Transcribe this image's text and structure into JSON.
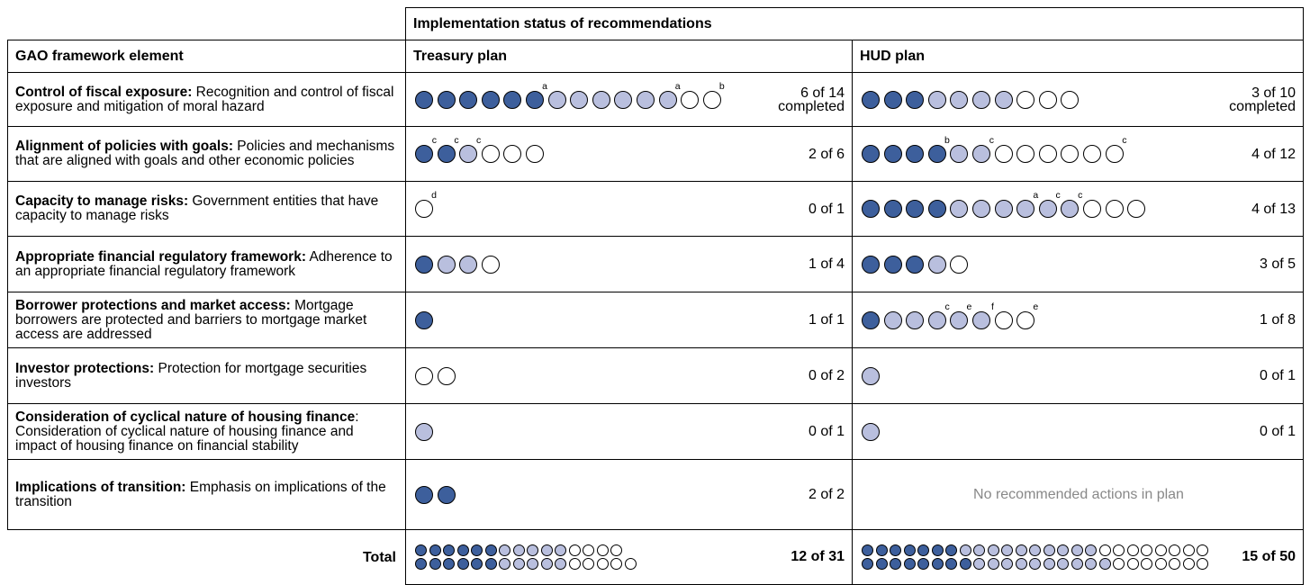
{
  "header": {
    "title": "Implementation status of recommendations"
  },
  "columns": [
    "GAO framework element",
    "Treasury plan",
    "HUD plan"
  ],
  "rows": [
    {
      "label": "Control of fiscal exposure:",
      "description": " Recognition and control of fiscal exposure and mitigation of moral hazard",
      "treasury": {
        "dots": [
          2,
          2,
          2,
          2,
          2,
          {
            "level": 2,
            "note": "a"
          },
          1,
          1,
          1,
          1,
          1,
          {
            "level": 1,
            "note": "a"
          },
          0,
          {
            "level": 0,
            "note": "b"
          }
        ],
        "count": "6 of 14",
        "count_suffix": "completed"
      },
      "hud": {
        "dots": [
          2,
          2,
          2,
          1,
          1,
          1,
          1,
          0,
          0,
          0
        ],
        "count": "3 of 10",
        "count_suffix": "completed"
      }
    },
    {
      "label": "Alignment of policies with goals:",
      "description": " Policies and mechanisms that are aligned with goals and other economic policies",
      "treasury": {
        "dots": [
          {
            "level": 2,
            "note": "c"
          },
          {
            "level": 2,
            "note": "c"
          },
          {
            "level": 1,
            "note": "c"
          },
          0,
          0,
          0
        ],
        "count": "2 of 6"
      },
      "hud": {
        "dots": [
          2,
          2,
          2,
          {
            "level": 2,
            "note": "b"
          },
          1,
          {
            "level": 1,
            "note": "c"
          },
          0,
          0,
          0,
          0,
          0,
          {
            "level": 0,
            "note": "c"
          }
        ],
        "count": "4 of 12"
      }
    },
    {
      "label": "Capacity to manage risks:",
      "description": " Government entities that have capacity to manage risks",
      "treasury": {
        "dots": [
          {
            "level": 0,
            "note": "d"
          }
        ],
        "count": "0 of 1"
      },
      "hud": {
        "dots": [
          2,
          2,
          2,
          2,
          1,
          1,
          1,
          {
            "level": 1,
            "note": "a"
          },
          {
            "level": 1,
            "note": "c"
          },
          {
            "level": 1,
            "note": "c"
          },
          0,
          0,
          0
        ],
        "count": "4 of 13"
      }
    },
    {
      "label": "Appropriate financial regulatory framework:",
      "description": " Adherence to an appropriate financial regulatory framework",
      "treasury": {
        "dots": [
          2,
          1,
          1,
          0
        ],
        "count": "1 of 4"
      },
      "hud": {
        "dots": [
          2,
          2,
          2,
          1,
          0
        ],
        "count": "3 of 5"
      }
    },
    {
      "label": "Borrower protections and market access:",
      "description": " Mortgage borrowers are protected and barriers to mortgage market access are addressed",
      "treasury": {
        "dots": [
          2
        ],
        "count": "1 of 1"
      },
      "hud": {
        "dots": [
          2,
          1,
          1,
          {
            "level": 1,
            "note": "c"
          },
          {
            "level": 1,
            "note": "e"
          },
          {
            "level": 1,
            "note": "f"
          },
          0,
          {
            "level": 0,
            "note": "e"
          }
        ],
        "count": "1 of 8"
      }
    },
    {
      "label": "Investor protections:",
      "description": " Protection for mortgage securities investors",
      "treasury": {
        "dots": [
          0,
          0
        ],
        "count": "0 of 2"
      },
      "hud": {
        "dots": [
          1
        ],
        "count": "0 of 1"
      }
    },
    {
      "label": "Consideration of cyclical nature of housing finance",
      "description": ": Consideration of cyclical nature of housing finance and impact of housing finance on financial stability",
      "treasury": {
        "dots": [
          1
        ],
        "count": "0 of 1"
      },
      "hud": {
        "dots": [
          1
        ],
        "count": "0 of 1"
      }
    },
    {
      "label": "Implications of transition:",
      "description": " Emphasis on implications of the transition",
      "treasury": {
        "dots": [
          2,
          2
        ],
        "count": "2 of 2"
      },
      "hud": {
        "empty_text": "No recommended actions in plan"
      }
    }
  ],
  "total": {
    "label": "Total",
    "treasury": {
      "dot_rows": [
        [
          2,
          2,
          2,
          2,
          2,
          2,
          1,
          1,
          1,
          1,
          1,
          0,
          0,
          0,
          0
        ],
        [
          2,
          2,
          2,
          2,
          2,
          2,
          1,
          1,
          1,
          1,
          1,
          0,
          0,
          0,
          0,
          0
        ]
      ],
      "count": "12 of 31"
    },
    "hud": {
      "dot_rows": [
        [
          2,
          2,
          2,
          2,
          2,
          2,
          2,
          1,
          1,
          1,
          1,
          1,
          1,
          1,
          1,
          1,
          1,
          0,
          0,
          0,
          0,
          0,
          0,
          0,
          0
        ],
        [
          2,
          2,
          2,
          2,
          2,
          2,
          2,
          2,
          1,
          1,
          1,
          1,
          1,
          1,
          1,
          1,
          1,
          1,
          0,
          0,
          0,
          0,
          0,
          0,
          0
        ]
      ],
      "count": "15 of 50"
    }
  }
}
